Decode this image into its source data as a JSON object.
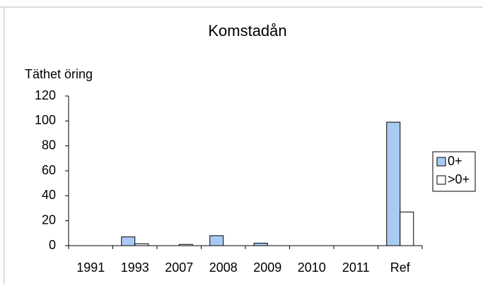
{
  "chart_data": {
    "type": "bar",
    "title": "Komstadån",
    "y_label": "Täthet öring",
    "categories": [
      "1991",
      "1993",
      "2007",
      "2008",
      "2009",
      "2010",
      "2011",
      "Ref"
    ],
    "series": [
      {
        "name": "0+",
        "color": "#a9cbf3",
        "values": [
          0,
          7,
          0,
          8,
          2,
          0,
          0,
          99
        ]
      },
      {
        "name": ">0+",
        "color": "#ffffff",
        "values": [
          0,
          1.5,
          1,
          0,
          0,
          0,
          0,
          27
        ]
      }
    ],
    "ylim": [
      0,
      120
    ],
    "yticks": [
      0,
      20,
      40,
      60,
      80,
      100,
      120
    ],
    "grid": false,
    "legend": "right"
  }
}
